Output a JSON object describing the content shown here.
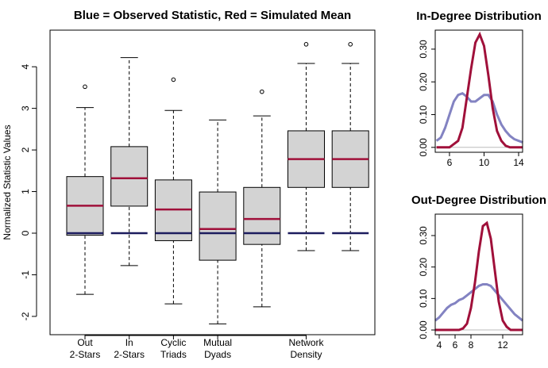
{
  "chart_data": [
    {
      "type": "boxplot",
      "title": "Blue = Observed Statistic, Red = Simulated Mean",
      "ylabel": "Normalized Statistic Values",
      "categories": [
        [
          "Out",
          "2-Stars"
        ],
        [
          "In",
          "2-Stars"
        ],
        [
          "Cyclic",
          "Triads"
        ],
        [
          "Mutual",
          "Dyads"
        ],
        null,
        [
          "Network",
          "Density"
        ],
        null
      ],
      "boxes": [
        {
          "low": -1.47,
          "q1": -0.05,
          "q3": 1.36,
          "high": 3.02,
          "mean": 0.66,
          "observed": 0,
          "outliers": [
            3.52
          ]
        },
        {
          "low": -0.78,
          "q1": 0.65,
          "q3": 2.08,
          "high": 4.22,
          "mean": 1.32,
          "observed": 0,
          "outliers": []
        },
        {
          "low": -1.7,
          "q1": -0.18,
          "q3": 1.28,
          "high": 2.95,
          "mean": 0.57,
          "observed": 0,
          "outliers": [
            3.69
          ]
        },
        {
          "low": -2.18,
          "q1": -0.65,
          "q3": 0.99,
          "high": 2.72,
          "mean": 0.1,
          "observed": 0,
          "outliers": []
        },
        {
          "low": -1.77,
          "q1": -0.27,
          "q3": 1.1,
          "high": 2.82,
          "mean": 0.34,
          "observed": 0,
          "outliers": [
            3.4
          ]
        },
        {
          "low": -0.42,
          "q1": 1.1,
          "q3": 2.46,
          "high": 4.08,
          "mean": 1.78,
          "observed": 0,
          "outliers": [
            4.54
          ]
        },
        {
          "low": -0.42,
          "q1": 1.1,
          "q3": 2.46,
          "high": 4.08,
          "mean": 1.78,
          "observed": 0,
          "outliers": [
            4.54
          ]
        }
      ],
      "ylim": [
        -2.44,
        4.88
      ],
      "yticks": [
        -2,
        -1,
        0,
        1,
        2,
        3,
        4
      ],
      "colors": {
        "box": "#d3d3d3",
        "mean": "#a0103a",
        "observed": "#1c1c5e"
      }
    },
    {
      "type": "density",
      "title": "In-Degree Distribution",
      "x": [
        4.5,
        5,
        5.5,
        6,
        6.5,
        7,
        7.5,
        8,
        8.5,
        9,
        9.5,
        10,
        10.5,
        11,
        11.5,
        12,
        12.5,
        13,
        13.5,
        14,
        14.5
      ],
      "series": [
        {
          "color": "#8383c2",
          "values": [
            0.02,
            0.03,
            0.06,
            0.1,
            0.14,
            0.16,
            0.165,
            0.155,
            0.14,
            0.14,
            0.15,
            0.16,
            0.16,
            0.14,
            0.1,
            0.07,
            0.05,
            0.035,
            0.025,
            0.02,
            0.015
          ]
        },
        {
          "color": "#a0103a",
          "values": [
            0,
            0,
            0,
            0,
            0.01,
            0.02,
            0.06,
            0.15,
            0.24,
            0.32,
            0.345,
            0.31,
            0.22,
            0.12,
            0.05,
            0.02,
            0.005,
            0,
            0,
            0,
            0
          ]
        }
      ],
      "xlim": [
        4.35,
        14.46
      ],
      "xticks": [
        6,
        10,
        14
      ],
      "ylim": [
        -0.015,
        0.358
      ],
      "yticks": [
        {
          "value": 0,
          "label": "0.00"
        },
        {
          "value": 0.1,
          "label": "0.10"
        },
        {
          "value": 0.2,
          "label": "0.20"
        },
        {
          "value": 0.3,
          "label": "0.30"
        }
      ]
    },
    {
      "type": "density",
      "title": "Out-Degree Distribution",
      "x": [
        3.5,
        4,
        4.5,
        5,
        5.5,
        6,
        6.5,
        7,
        7.5,
        8,
        8.5,
        9,
        9.5,
        10,
        10.5,
        11,
        11.5,
        12,
        12.5,
        13,
        13.5,
        14,
        14.5
      ],
      "series": [
        {
          "color": "#8383c2",
          "values": [
            0.03,
            0.04,
            0.055,
            0.07,
            0.08,
            0.085,
            0.095,
            0.1,
            0.11,
            0.12,
            0.13,
            0.14,
            0.145,
            0.145,
            0.14,
            0.125,
            0.11,
            0.095,
            0.08,
            0.065,
            0.05,
            0.04,
            0.03
          ]
        },
        {
          "color": "#a0103a",
          "values": [
            0,
            0,
            0,
            0,
            0,
            0,
            0,
            0.005,
            0.02,
            0.07,
            0.15,
            0.25,
            0.33,
            0.34,
            0.29,
            0.19,
            0.09,
            0.03,
            0.01,
            0,
            0,
            0,
            0
          ]
        }
      ],
      "xlim": [
        3.5,
        14.5
      ],
      "xticks": [
        4,
        6,
        8,
        12
      ],
      "ylim": [
        -0.015,
        0.368
      ],
      "yticks": [
        {
          "value": 0,
          "label": "0.00"
        },
        {
          "value": 0.1,
          "label": "0.10"
        },
        {
          "value": 0.2,
          "label": "0.20"
        },
        {
          "value": 0.3,
          "label": "0.30"
        }
      ]
    }
  ]
}
